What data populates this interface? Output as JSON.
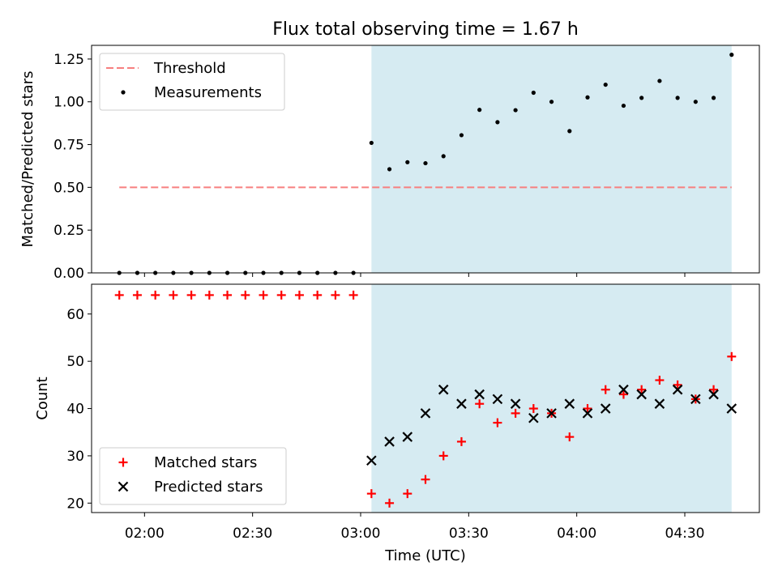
{
  "chart_data": {
    "title": "Flux total observing time = 1.67 h",
    "x_tick_labels": [
      "02:00",
      "02:30",
      "03:00",
      "03:30",
      "04:00",
      "04:30"
    ],
    "x_tick_minutes": [
      120,
      150,
      180,
      210,
      240,
      270
    ],
    "xlabel": "Time (UTC)",
    "xlim_minutes": [
      105.3,
      290.7
    ],
    "observing_window_minutes": [
      183,
      283
    ],
    "panels": [
      {
        "type": "scatter",
        "ylabel": "Matched/Predicted stars",
        "ylim": [
          0,
          1.33
        ],
        "yticks": [
          0.0,
          0.25,
          0.5,
          0.75,
          1.0,
          1.25
        ],
        "ytick_labels": [
          "0.00",
          "0.25",
          "0.50",
          "0.75",
          "1.00",
          "1.25"
        ],
        "legend_position": "upper left",
        "threshold": {
          "name": "Threshold",
          "value": 0.5,
          "x_range": [
            113,
            283
          ],
          "color": "#f77f7f"
        },
        "series": [
          {
            "name": "Measurements",
            "color": "#000000",
            "x": [
              113,
              118,
              123,
              128,
              133,
              138,
              143,
              148,
              153,
              158,
              163,
              168,
              173,
              178,
              183,
              188,
              193,
              198,
              203,
              208,
              213,
              218,
              223,
              228,
              233,
              238,
              243,
              248,
              253,
              258,
              263,
              268,
              273,
              278,
              283
            ],
            "y": [
              0,
              0,
              0,
              0,
              0,
              0,
              0,
              0,
              0,
              0,
              0,
              0,
              0,
              0,
              0.76,
              0.606,
              0.647,
              0.641,
              0.682,
              0.805,
              0.953,
              0.881,
              0.951,
              1.053,
              1.0,
              0.829,
              1.026,
              1.1,
              0.977,
              1.023,
              1.122,
              1.023,
              1.0,
              1.023,
              1.275
            ]
          }
        ]
      },
      {
        "type": "scatter",
        "ylabel": "Count",
        "ylim": [
          18,
          66.3
        ],
        "yticks": [
          20,
          30,
          40,
          50,
          60
        ],
        "ytick_labels": [
          "20",
          "30",
          "40",
          "50",
          "60"
        ],
        "legend_position": "lower left",
        "series": [
          {
            "name": "Matched stars",
            "marker": "+",
            "color": "#ff0000",
            "x": [
              113,
              118,
              123,
              128,
              133,
              138,
              143,
              148,
              153,
              158,
              163,
              168,
              173,
              178,
              183,
              188,
              193,
              198,
              203,
              208,
              213,
              218,
              223,
              228,
              233,
              238,
              243,
              248,
              253,
              258,
              263,
              268,
              273,
              278,
              283
            ],
            "y": [
              64,
              64,
              64,
              64,
              64,
              64,
              64,
              64,
              64,
              64,
              64,
              64,
              64,
              64,
              22,
              20,
              22,
              25,
              30,
              33,
              41,
              37,
              39,
              40,
              39,
              34,
              40,
              44,
              43,
              44,
              46,
              45,
              42,
              44,
              51
            ]
          },
          {
            "name": "Predicted stars",
            "marker": "x",
            "color": "#000000",
            "x": [
              183,
              188,
              193,
              198,
              203,
              208,
              213,
              218,
              223,
              228,
              233,
              238,
              243,
              248,
              253,
              258,
              263,
              268,
              273,
              278,
              283
            ],
            "y": [
              29,
              33,
              34,
              39,
              44,
              41,
              43,
              42,
              41,
              38,
              39,
              41,
              39,
              40,
              44,
              43,
              41,
              44,
              42,
              43,
              40
            ]
          }
        ]
      }
    ]
  }
}
